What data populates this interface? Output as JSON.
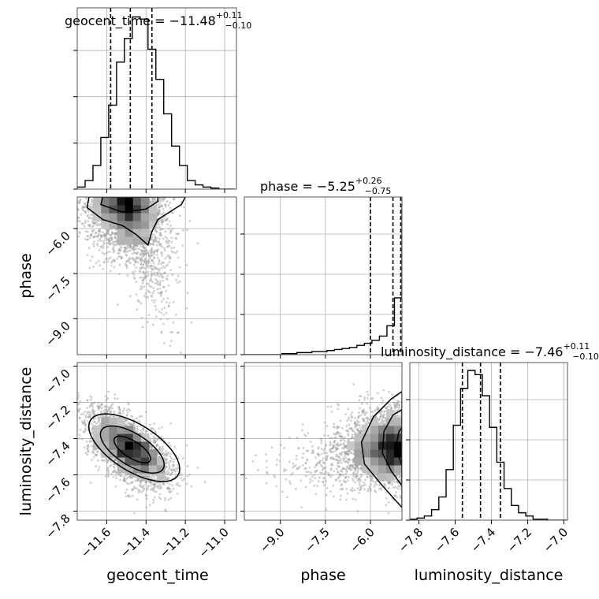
{
  "chart_data": {
    "type": "corner",
    "parameters": [
      {
        "name": "geocent_time",
        "axis_label": "geocent_time",
        "title": "geocent_time = −11.48",
        "median": -11.48,
        "upper": "+0.11",
        "lower": "−0.10",
        "q16": -11.58,
        "q84": -11.37,
        "range": [
          -11.75,
          -10.94
        ],
        "ticks": [
          -11.6,
          -11.4,
          -11.2,
          -11.0
        ],
        "tick_labels": [
          "−11.6",
          "−11.4",
          "−11.2",
          "−11.0"
        ],
        "hist_edges_start": -11.75,
        "hist_bin_width": 0.04,
        "hist_counts": [
          2,
          8,
          22,
          48,
          78,
          118,
          140,
          160,
          158,
          130,
          102,
          70,
          40,
          22,
          8,
          4,
          2,
          1,
          0,
          0
        ]
      },
      {
        "name": "phase",
        "axis_label": "phase",
        "title": "phase = −5.25",
        "median": -5.25,
        "upper": "+0.26",
        "lower": "−0.75",
        "q16": -6.0,
        "q84": -4.99,
        "range": [
          -10.2,
          -4.95
        ],
        "ticks": [
          -9.0,
          -7.5,
          -6.0
        ],
        "tick_labels": [
          "−9.0",
          "−7.5",
          "−6.0"
        ],
        "hist_edges_start": -10.2,
        "hist_bin_width": 0.25,
        "hist_counts": [
          0,
          0,
          0,
          0,
          0,
          1,
          1,
          2,
          2,
          3,
          3,
          4,
          5,
          6,
          7,
          9,
          11,
          14,
          18,
          28,
          55,
          145
        ]
      },
      {
        "name": "luminosity_distance",
        "axis_label": "luminosity_distance",
        "title": "luminosity_distance = −7.46",
        "median": -7.46,
        "upper": "+0.11",
        "lower": "−0.10",
        "q16": -7.56,
        "q84": -7.35,
        "range": [
          -7.85,
          -6.98
        ],
        "ticks": [
          -7.8,
          -7.6,
          -7.4,
          -7.2,
          -7.0
        ],
        "tick_labels": [
          "−7.8",
          "−7.6",
          "−7.4",
          "−7.2",
          "−7.0"
        ],
        "hist_edges_start": -7.85,
        "hist_bin_width": 0.04,
        "hist_counts": [
          1,
          2,
          4,
          10,
          22,
          48,
          90,
          125,
          142,
          138,
          118,
          88,
          55,
          30,
          14,
          7,
          4,
          1,
          1,
          0,
          0,
          0
        ]
      }
    ],
    "correlations": {
      "geocent_time-phase": -0.35,
      "geocent_time-luminosity_distance": -0.6,
      "phase-luminosity_distance": 0.0
    },
    "quantile_lines": "dashed",
    "grid": true
  }
}
